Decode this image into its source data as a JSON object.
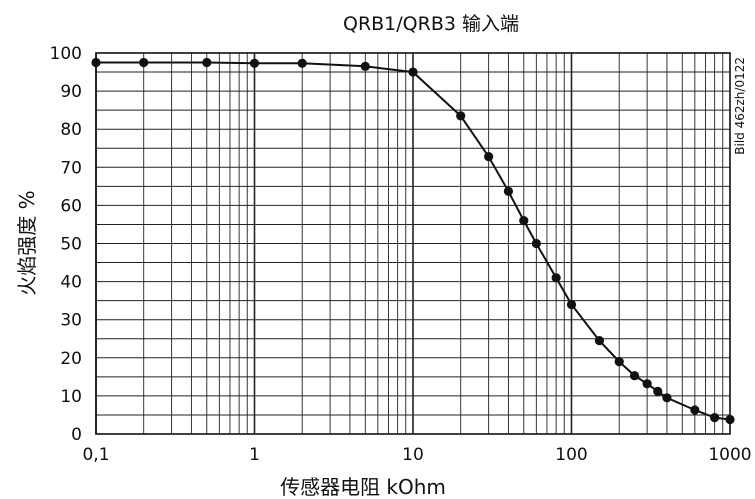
{
  "chart_data": {
    "type": "line",
    "title": "QRB1/QRB3 输入端",
    "xlabel": "传感器电阻 kOhm",
    "ylabel": "火焰强度 %",
    "x_scale": "log",
    "xlim": [
      0.1,
      1000
    ],
    "ylim": [
      0,
      100
    ],
    "grid": true,
    "x_tick_labels": [
      "0,1",
      "1",
      "10",
      "100",
      "1000"
    ],
    "y_ticks": [
      0,
      10,
      20,
      30,
      40,
      50,
      60,
      70,
      80,
      90,
      100
    ],
    "side_note": "Bild 462zh/0122",
    "series": [
      {
        "x": [
          0.1,
          0.2,
          0.5,
          1,
          2,
          5,
          10,
          20,
          30,
          40,
          50,
          60,
          80,
          100,
          150,
          200,
          250,
          300,
          350,
          400,
          600,
          800,
          1000
        ],
        "y": [
          97.5,
          97.5,
          97.5,
          97.3,
          97.3,
          96.5,
          95,
          83.5,
          72.8,
          63.7,
          56,
          50,
          41,
          34,
          24.5,
          19,
          15.3,
          13.2,
          11.2,
          9.5,
          6.3,
          4.3,
          3.8
        ]
      }
    ]
  }
}
